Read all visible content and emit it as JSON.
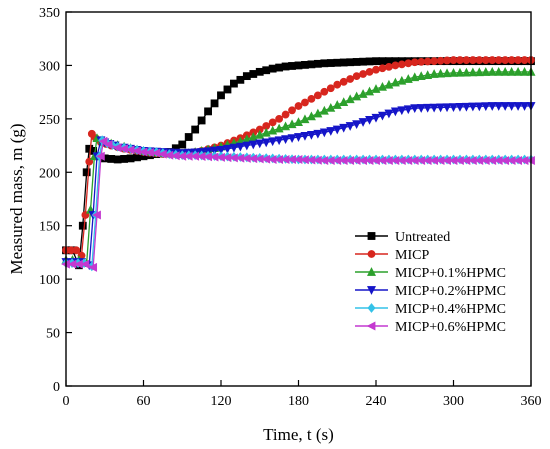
{
  "chart_data": {
    "type": "line",
    "xlabel": "Time, t (s)",
    "ylabel": "Measured mass, m (g)",
    "xlim": [
      0,
      360
    ],
    "ylim": [
      0,
      350
    ],
    "xticks": [
      0,
      60,
      120,
      180,
      240,
      300,
      360
    ],
    "yticks": [
      0,
      50,
      100,
      150,
      200,
      250,
      300,
      350
    ],
    "grid": false,
    "legend_position": "bottom-right",
    "series": [
      {
        "name": "Untreated",
        "color": "#000000",
        "marker": "square",
        "points": [
          [
            0,
            127
          ],
          [
            5,
            127
          ],
          [
            10,
            113
          ],
          [
            13,
            150
          ],
          [
            16,
            200
          ],
          [
            18,
            222
          ],
          [
            21,
            220
          ],
          [
            25,
            215
          ],
          [
            30,
            213
          ],
          [
            40,
            212
          ],
          [
            50,
            213
          ],
          [
            60,
            215
          ],
          [
            70,
            217
          ],
          [
            80,
            219
          ],
          [
            90,
            226
          ],
          [
            100,
            240
          ],
          [
            110,
            257
          ],
          [
            120,
            272
          ],
          [
            130,
            283
          ],
          [
            140,
            290
          ],
          [
            150,
            294
          ],
          [
            160,
            297
          ],
          [
            170,
            299
          ],
          [
            180,
            300
          ],
          [
            200,
            302
          ],
          [
            220,
            303
          ],
          [
            240,
            304
          ],
          [
            270,
            304
          ],
          [
            300,
            304
          ],
          [
            330,
            304
          ],
          [
            360,
            304
          ]
        ]
      },
      {
        "name": "MICP",
        "color": "#d7261e",
        "marker": "circle",
        "points": [
          [
            0,
            127
          ],
          [
            8,
            127
          ],
          [
            12,
            122
          ],
          [
            15,
            160
          ],
          [
            18,
            210
          ],
          [
            20,
            236
          ],
          [
            23,
            232
          ],
          [
            27,
            228
          ],
          [
            35,
            225
          ],
          [
            45,
            222
          ],
          [
            60,
            219
          ],
          [
            75,
            217
          ],
          [
            90,
            217
          ],
          [
            105,
            220
          ],
          [
            120,
            225
          ],
          [
            135,
            232
          ],
          [
            150,
            240
          ],
          [
            165,
            250
          ],
          [
            180,
            262
          ],
          [
            195,
            272
          ],
          [
            210,
            282
          ],
          [
            225,
            290
          ],
          [
            240,
            296
          ],
          [
            255,
            300
          ],
          [
            270,
            303
          ],
          [
            285,
            304
          ],
          [
            300,
            305
          ],
          [
            330,
            305
          ],
          [
            360,
            305
          ]
        ]
      },
      {
        "name": "MICP+0.1%HPMC",
        "color": "#2ca02c",
        "marker": "triangle-up",
        "points": [
          [
            0,
            118
          ],
          [
            10,
            118
          ],
          [
            16,
            115
          ],
          [
            19,
            165
          ],
          [
            22,
            215
          ],
          [
            24,
            232
          ],
          [
            28,
            230
          ],
          [
            35,
            227
          ],
          [
            45,
            224
          ],
          [
            60,
            220
          ],
          [
            75,
            218
          ],
          [
            90,
            217
          ],
          [
            105,
            220
          ],
          [
            120,
            224
          ],
          [
            135,
            229
          ],
          [
            150,
            235
          ],
          [
            165,
            241
          ],
          [
            180,
            247
          ],
          [
            195,
            255
          ],
          [
            210,
            263
          ],
          [
            225,
            271
          ],
          [
            240,
            278
          ],
          [
            255,
            284
          ],
          [
            270,
            289
          ],
          [
            285,
            292
          ],
          [
            300,
            293
          ],
          [
            330,
            294
          ],
          [
            360,
            294
          ]
        ]
      },
      {
        "name": "MICP+0.2%HPMC",
        "color": "#1515c8",
        "marker": "triangle-down",
        "points": [
          [
            0,
            116
          ],
          [
            12,
            116
          ],
          [
            18,
            113
          ],
          [
            21,
            160
          ],
          [
            24,
            215
          ],
          [
            27,
            230
          ],
          [
            30,
            228
          ],
          [
            38,
            225
          ],
          [
            45,
            223
          ],
          [
            60,
            220
          ],
          [
            75,
            219
          ],
          [
            90,
            218
          ],
          [
            105,
            219
          ],
          [
            120,
            221
          ],
          [
            135,
            224
          ],
          [
            150,
            227
          ],
          [
            165,
            230
          ],
          [
            180,
            233
          ],
          [
            195,
            236
          ],
          [
            210,
            240
          ],
          [
            225,
            245
          ],
          [
            240,
            251
          ],
          [
            255,
            257
          ],
          [
            270,
            260
          ],
          [
            300,
            261
          ],
          [
            330,
            262
          ],
          [
            360,
            262
          ]
        ]
      },
      {
        "name": "MICP+0.4%HPMC",
        "color": "#33c2e8",
        "marker": "diamond",
        "points": [
          [
            0,
            115
          ],
          [
            14,
            115
          ],
          [
            20,
            112
          ],
          [
            23,
            160
          ],
          [
            26,
            215
          ],
          [
            28,
            230
          ],
          [
            32,
            227
          ],
          [
            40,
            224
          ],
          [
            50,
            222
          ],
          [
            60,
            220
          ],
          [
            70,
            219
          ],
          [
            80,
            217
          ],
          [
            90,
            216
          ],
          [
            100,
            216
          ],
          [
            120,
            215
          ],
          [
            140,
            214
          ],
          [
            160,
            213
          ],
          [
            180,
            212
          ],
          [
            200,
            212
          ],
          [
            240,
            212
          ],
          [
            280,
            212
          ],
          [
            320,
            212
          ],
          [
            360,
            212
          ]
        ]
      },
      {
        "name": "MICP+0.6%HPMC",
        "color": "#c439d0",
        "marker": "triangle-left",
        "points": [
          [
            0,
            114
          ],
          [
            15,
            114
          ],
          [
            21,
            111
          ],
          [
            24,
            160
          ],
          [
            27,
            215
          ],
          [
            29,
            229
          ],
          [
            33,
            226
          ],
          [
            40,
            223
          ],
          [
            50,
            221
          ],
          [
            60,
            219
          ],
          [
            70,
            218
          ],
          [
            80,
            216
          ],
          [
            90,
            215
          ],
          [
            100,
            215
          ],
          [
            120,
            214
          ],
          [
            140,
            213
          ],
          [
            160,
            212
          ],
          [
            180,
            212
          ],
          [
            200,
            211
          ],
          [
            240,
            211
          ],
          [
            280,
            211
          ],
          [
            320,
            211
          ],
          [
            360,
            211
          ]
        ]
      }
    ]
  }
}
